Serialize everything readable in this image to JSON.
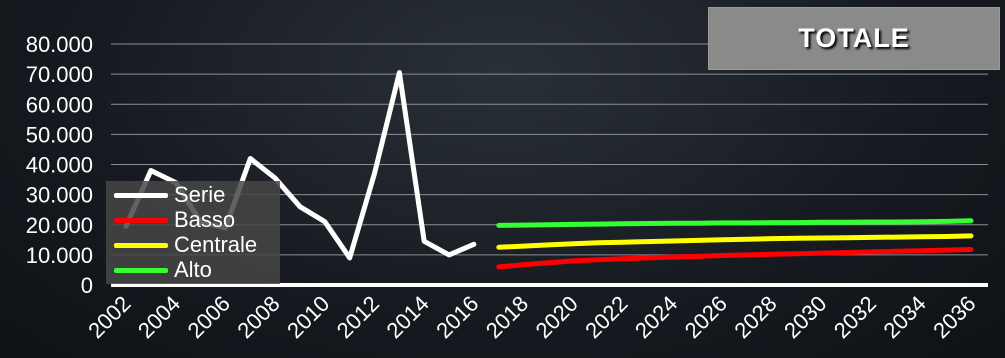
{
  "chart_data": {
    "type": "line",
    "title": "TOTALE",
    "xlabel": "",
    "ylabel": "",
    "ylim": [
      0,
      80000
    ],
    "yticks": [
      "0",
      "10.000",
      "20.000",
      "30.000",
      "40.000",
      "50.000",
      "60.000",
      "70.000",
      "80.000"
    ],
    "ytick_values": [
      0,
      10000,
      20000,
      30000,
      40000,
      50000,
      60000,
      70000,
      80000
    ],
    "x": [
      2002,
      2003,
      2004,
      2005,
      2006,
      2007,
      2008,
      2009,
      2010,
      2011,
      2012,
      2013,
      2014,
      2015,
      2016,
      2017,
      2018,
      2019,
      2020,
      2021,
      2022,
      2023,
      2024,
      2025,
      2026,
      2027,
      2028,
      2029,
      2030,
      2031,
      2032,
      2033,
      2034,
      2035,
      2036
    ],
    "xticks": [
      "2002",
      "2004",
      "2006",
      "2008",
      "2010",
      "2012",
      "2014",
      "2016",
      "2018",
      "2020",
      "2022",
      "2024",
      "2026",
      "2028",
      "2030",
      "2032",
      "2034",
      "2036"
    ],
    "grid": true,
    "legend_position": "bottom-left",
    "series": [
      {
        "name": "Serie",
        "color": "#ffffff",
        "values": [
          19500,
          38000,
          34000,
          21000,
          19000,
          42000,
          35500,
          26000,
          21000,
          9000,
          37000,
          70500,
          14500,
          10000,
          13500,
          null,
          null,
          null,
          null,
          null,
          null,
          null,
          null,
          null,
          null,
          null,
          null,
          null,
          null,
          null,
          null,
          null,
          null,
          null,
          null
        ]
      },
      {
        "name": "Basso",
        "color": "#ff0000",
        "values": [
          null,
          null,
          null,
          null,
          null,
          null,
          null,
          null,
          null,
          null,
          null,
          null,
          null,
          null,
          null,
          6000,
          6700,
          7400,
          8000,
          8400,
          8700,
          9000,
          9300,
          9500,
          9800,
          10000,
          10200,
          10400,
          10600,
          10800,
          11000,
          11200,
          11400,
          11600,
          11800
        ]
      },
      {
        "name": "Centrale",
        "color": "#ffff00",
        "values": [
          null,
          null,
          null,
          null,
          null,
          null,
          null,
          null,
          null,
          null,
          null,
          null,
          null,
          null,
          null,
          12500,
          12900,
          13300,
          13700,
          14000,
          14200,
          14400,
          14600,
          14800,
          15000,
          15200,
          15400,
          15500,
          15600,
          15700,
          15800,
          15900,
          16000,
          16100,
          16300
        ]
      },
      {
        "name": "Alto",
        "color": "#33ff33",
        "values": [
          null,
          null,
          null,
          null,
          null,
          null,
          null,
          null,
          null,
          null,
          null,
          null,
          null,
          null,
          null,
          19800,
          19900,
          20000,
          20100,
          20200,
          20300,
          20400,
          20500,
          20500,
          20600,
          20600,
          20700,
          20700,
          20800,
          20800,
          20900,
          20900,
          21000,
          21100,
          21300
        ]
      }
    ]
  }
}
